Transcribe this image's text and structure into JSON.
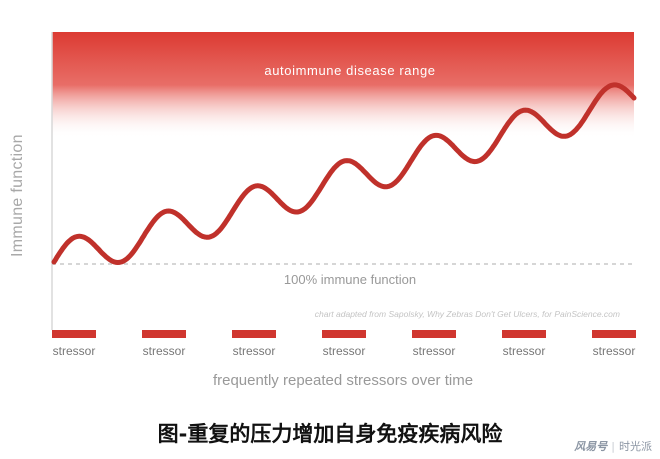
{
  "chart_data": {
    "type": "line",
    "ylabel": "Immune function",
    "xlabel": "frequently repeated stressors over time",
    "band_label": "autoimmune disease range",
    "baseline_label": "100% immune function",
    "credit": "chart adapted from Sapolsky, Why Zebras Don't Get Ulcers, for PainScience.com",
    "stressor_label": "stressor",
    "stressor_count": 7,
    "curve_cycles": 6.5,
    "colors": {
      "line": "#c0312b",
      "band": "#e0413a",
      "stressor": "#d0362f",
      "baseline": "#c8c8c8",
      "axis": "#d8d8d8"
    }
  },
  "caption": "图-重复的压力增加自身免疫疾病风险",
  "watermark": {
    "logo": "风易号",
    "source": "时光派"
  }
}
